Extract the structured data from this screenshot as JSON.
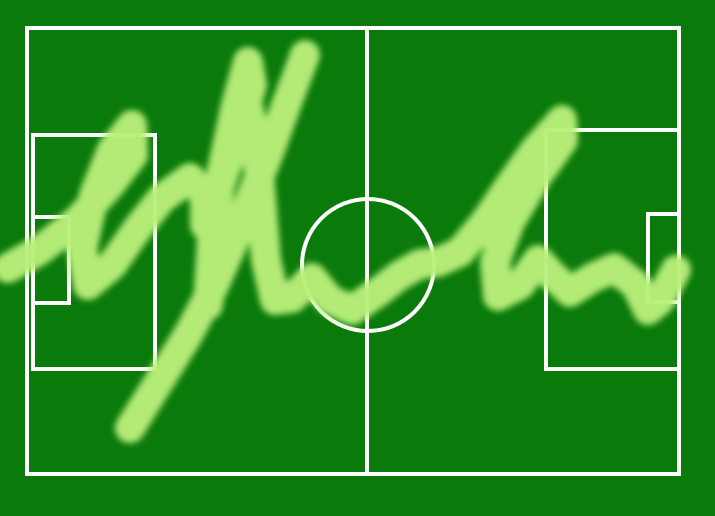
{
  "scene": {
    "subject": "football-pitch",
    "colors": {
      "grass": "#0a7a0a",
      "line": "#ffffff",
      "scribble": "#b9ef7a"
    },
    "markings": [
      "outer-boundary",
      "halfway-line",
      "center-circle",
      "left-penalty-box",
      "left-goal-box",
      "right-penalty-box",
      "right-goal-box"
    ],
    "overlay": "handwritten-scribble"
  }
}
